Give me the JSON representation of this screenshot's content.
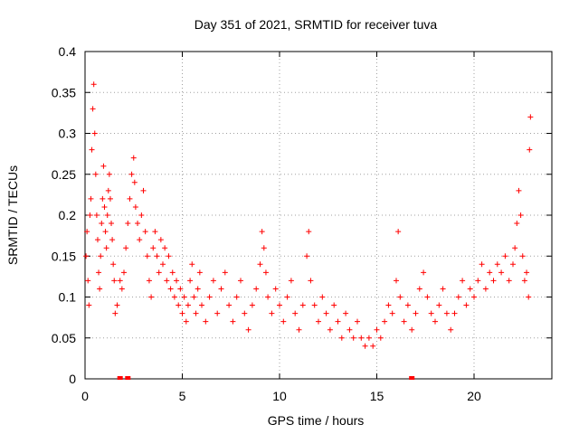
{
  "chart_data": {
    "type": "scatter",
    "title": "Day 351 of 2021, SRMTID for receiver tuva",
    "xlabel": "GPS time / hours",
    "ylabel": "SRMTID / TECUs",
    "xlim": [
      0,
      24
    ],
    "ylim": [
      0,
      0.4
    ],
    "x_ticks": [
      0,
      5,
      10,
      15,
      20
    ],
    "x_tick_labels": [
      "0",
      "5",
      "10",
      "15",
      "20"
    ],
    "y_ticks": [
      0,
      0.05,
      0.1,
      0.15,
      0.2,
      0.25,
      0.3,
      0.35,
      0.4
    ],
    "y_tick_labels": [
      "0",
      "0.05",
      "0.1",
      "0.15",
      "0.2",
      "0.25",
      "0.3",
      "0.35",
      "0.4"
    ],
    "grid": true,
    "marker_color": "#ff0000",
    "marker": "plus",
    "series": [
      {
        "points": [
          [
            0.05,
            0.15
          ],
          [
            0.1,
            0.18
          ],
          [
            0.15,
            0.12
          ],
          [
            0.2,
            0.09
          ],
          [
            0.25,
            0.2
          ],
          [
            0.3,
            0.22
          ],
          [
            0.35,
            0.28
          ],
          [
            0.4,
            0.33
          ],
          [
            0.45,
            0.36
          ],
          [
            0.5,
            0.3
          ],
          [
            0.55,
            0.25
          ],
          [
            0.6,
            0.2
          ],
          [
            0.65,
            0.17
          ],
          [
            0.7,
            0.13
          ],
          [
            0.75,
            0.11
          ],
          [
            0.8,
            0.15
          ],
          [
            0.85,
            0.19
          ],
          [
            0.9,
            0.22
          ],
          [
            0.95,
            0.26
          ],
          [
            1.0,
            0.21
          ],
          [
            1.05,
            0.18
          ],
          [
            1.1,
            0.16
          ],
          [
            1.15,
            0.2
          ],
          [
            1.2,
            0.23
          ],
          [
            1.25,
            0.25
          ],
          [
            1.3,
            0.22
          ],
          [
            1.35,
            0.19
          ],
          [
            1.4,
            0.17
          ],
          [
            1.45,
            0.14
          ],
          [
            1.5,
            0.12
          ],
          [
            1.55,
            0.08
          ],
          [
            1.65,
            0.09
          ],
          [
            1.8,
            0.12
          ],
          [
            1.9,
            0.11
          ],
          [
            2.0,
            0.13
          ],
          [
            2.1,
            0.16
          ],
          [
            2.2,
            0.19
          ],
          [
            2.3,
            0.22
          ],
          [
            2.4,
            0.25
          ],
          [
            2.5,
            0.27
          ],
          [
            2.55,
            0.24
          ],
          [
            2.6,
            0.21
          ],
          [
            2.7,
            0.19
          ],
          [
            2.8,
            0.17
          ],
          [
            2.9,
            0.2
          ],
          [
            3.0,
            0.23
          ],
          [
            3.1,
            0.18
          ],
          [
            3.2,
            0.15
          ],
          [
            3.3,
            0.12
          ],
          [
            3.4,
            0.1
          ],
          [
            3.5,
            0.16
          ],
          [
            3.6,
            0.18
          ],
          [
            3.7,
            0.15
          ],
          [
            3.8,
            0.13
          ],
          [
            3.9,
            0.17
          ],
          [
            4.0,
            0.14
          ],
          [
            4.1,
            0.16
          ],
          [
            4.2,
            0.12
          ],
          [
            4.3,
            0.15
          ],
          [
            4.4,
            0.11
          ],
          [
            4.5,
            0.13
          ],
          [
            4.6,
            0.1
          ],
          [
            4.7,
            0.12
          ],
          [
            4.8,
            0.09
          ],
          [
            4.9,
            0.11
          ],
          [
            5.0,
            0.08
          ],
          [
            5.1,
            0.1
          ],
          [
            5.2,
            0.07
          ],
          [
            5.3,
            0.09
          ],
          [
            5.4,
            0.12
          ],
          [
            5.5,
            0.14
          ],
          [
            5.6,
            0.1
          ],
          [
            5.7,
            0.08
          ],
          [
            5.8,
            0.11
          ],
          [
            5.9,
            0.13
          ],
          [
            6.0,
            0.09
          ],
          [
            6.2,
            0.07
          ],
          [
            6.4,
            0.1
          ],
          [
            6.6,
            0.12
          ],
          [
            6.8,
            0.08
          ],
          [
            7.0,
            0.11
          ],
          [
            7.2,
            0.13
          ],
          [
            7.4,
            0.09
          ],
          [
            7.6,
            0.07
          ],
          [
            7.8,
            0.1
          ],
          [
            8.0,
            0.12
          ],
          [
            8.2,
            0.08
          ],
          [
            8.4,
            0.06
          ],
          [
            8.6,
            0.09
          ],
          [
            8.8,
            0.11
          ],
          [
            9.0,
            0.14
          ],
          [
            9.1,
            0.18
          ],
          [
            9.2,
            0.16
          ],
          [
            9.3,
            0.13
          ],
          [
            9.4,
            0.1
          ],
          [
            9.6,
            0.08
          ],
          [
            9.8,
            0.11
          ],
          [
            10.0,
            0.09
          ],
          [
            10.2,
            0.07
          ],
          [
            10.4,
            0.1
          ],
          [
            10.6,
            0.12
          ],
          [
            10.8,
            0.08
          ],
          [
            11.0,
            0.06
          ],
          [
            11.2,
            0.09
          ],
          [
            11.4,
            0.15
          ],
          [
            11.5,
            0.18
          ],
          [
            11.6,
            0.12
          ],
          [
            11.8,
            0.09
          ],
          [
            12.0,
            0.07
          ],
          [
            12.2,
            0.1
          ],
          [
            12.4,
            0.08
          ],
          [
            12.6,
            0.06
          ],
          [
            12.8,
            0.09
          ],
          [
            13.0,
            0.07
          ],
          [
            13.2,
            0.05
          ],
          [
            13.4,
            0.08
          ],
          [
            13.6,
            0.06
          ],
          [
            13.8,
            0.05
          ],
          [
            14.0,
            0.07
          ],
          [
            14.2,
            0.05
          ],
          [
            14.4,
            0.04
          ],
          [
            14.6,
            0.05
          ],
          [
            14.8,
            0.04
          ],
          [
            15.0,
            0.06
          ],
          [
            15.2,
            0.05
          ],
          [
            15.4,
            0.07
          ],
          [
            15.6,
            0.09
          ],
          [
            15.8,
            0.08
          ],
          [
            16.0,
            0.12
          ],
          [
            16.1,
            0.18
          ],
          [
            16.2,
            0.1
          ],
          [
            16.4,
            0.07
          ],
          [
            16.6,
            0.09
          ],
          [
            16.8,
            0.06
          ],
          [
            17.0,
            0.08
          ],
          [
            17.2,
            0.11
          ],
          [
            17.4,
            0.13
          ],
          [
            17.6,
            0.1
          ],
          [
            17.8,
            0.08
          ],
          [
            18.0,
            0.07
          ],
          [
            18.2,
            0.09
          ],
          [
            18.4,
            0.11
          ],
          [
            18.6,
            0.08
          ],
          [
            18.8,
            0.06
          ],
          [
            19.0,
            0.08
          ],
          [
            19.2,
            0.1
          ],
          [
            19.4,
            0.12
          ],
          [
            19.6,
            0.09
          ],
          [
            19.8,
            0.11
          ],
          [
            20.0,
            0.1
          ],
          [
            20.2,
            0.12
          ],
          [
            20.4,
            0.14
          ],
          [
            20.6,
            0.11
          ],
          [
            20.8,
            0.13
          ],
          [
            21.0,
            0.12
          ],
          [
            21.2,
            0.14
          ],
          [
            21.4,
            0.13
          ],
          [
            21.6,
            0.15
          ],
          [
            21.8,
            0.12
          ],
          [
            22.0,
            0.14
          ],
          [
            22.1,
            0.16
          ],
          [
            22.2,
            0.19
          ],
          [
            22.3,
            0.23
          ],
          [
            22.4,
            0.2
          ],
          [
            22.5,
            0.15
          ],
          [
            22.6,
            0.12
          ],
          [
            22.7,
            0.13
          ],
          [
            22.8,
            0.1
          ],
          [
            22.85,
            0.28
          ],
          [
            22.9,
            0.32
          ]
        ]
      }
    ],
    "baseline_points": [
      [
        1.8,
        0.0
      ],
      [
        2.2,
        0.0
      ],
      [
        16.8,
        0.0
      ]
    ]
  }
}
